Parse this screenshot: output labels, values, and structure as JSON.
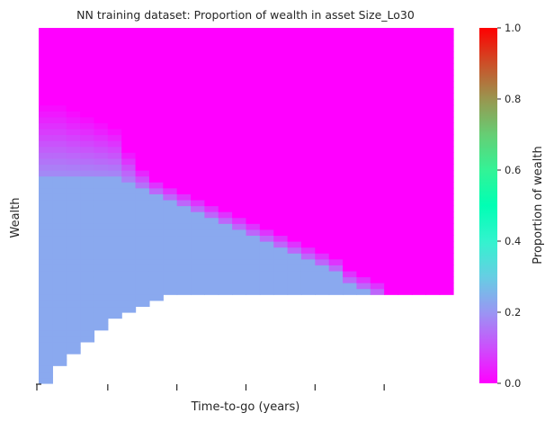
{
  "chart_data": {
    "type": "heatmap",
    "title": "NN training dataset: Proportion of wealth in asset Size_Lo30",
    "xlabel": "Time-to-go (years)",
    "ylabel": "Wealth",
    "colorbar": {
      "label": "Proportion of wealth",
      "colormap": "rainbow",
      "range": [
        0,
        1
      ],
      "ticks": [
        "0.0",
        "0.2",
        "0.4",
        "0.6",
        "0.8",
        "1.0"
      ]
    },
    "grid": false,
    "n_time_steps": 30,
    "n_wealth_bins": 60,
    "colors": {
      "background": "#ffffff",
      "zero_region": "#8000ff",
      "plateau_region": "#00b4eb",
      "axis_text": "#262626"
    },
    "value_levels": {
      "low": 0.0,
      "high": 0.23
    },
    "description_per_column": {
      "time_to_go_index": [
        0,
        1,
        2,
        3,
        4,
        5,
        6,
        7,
        8,
        9,
        10,
        11,
        12,
        13,
        14,
        15,
        16,
        17,
        18,
        19,
        20,
        21,
        22,
        23,
        24,
        25,
        26,
        27,
        28,
        29
      ],
      "missing_low_wealth_rows": [
        0,
        3,
        5,
        7,
        9,
        11,
        12,
        13,
        14,
        15,
        15,
        15,
        15,
        15,
        15,
        15,
        15,
        15,
        15,
        15,
        15,
        15,
        15,
        15,
        15,
        15,
        15,
        15,
        15,
        15
      ],
      "transition_wealth_row": [
        35,
        35,
        35,
        35,
        35,
        35,
        34,
        33,
        32,
        31,
        30,
        29,
        28,
        27,
        26,
        25,
        24,
        23,
        22,
        21,
        20,
        19,
        17,
        16,
        15,
        13,
        11,
        9,
        7,
        4
      ],
      "fade_width_rows": [
        12,
        12,
        11,
        10,
        9,
        8,
        5,
        3,
        2,
        2,
        2,
        2,
        2,
        2,
        2,
        2,
        2,
        2,
        2,
        2,
        2,
        2,
        2,
        2,
        2,
        2,
        2,
        2,
        1,
        1
      ]
    }
  }
}
